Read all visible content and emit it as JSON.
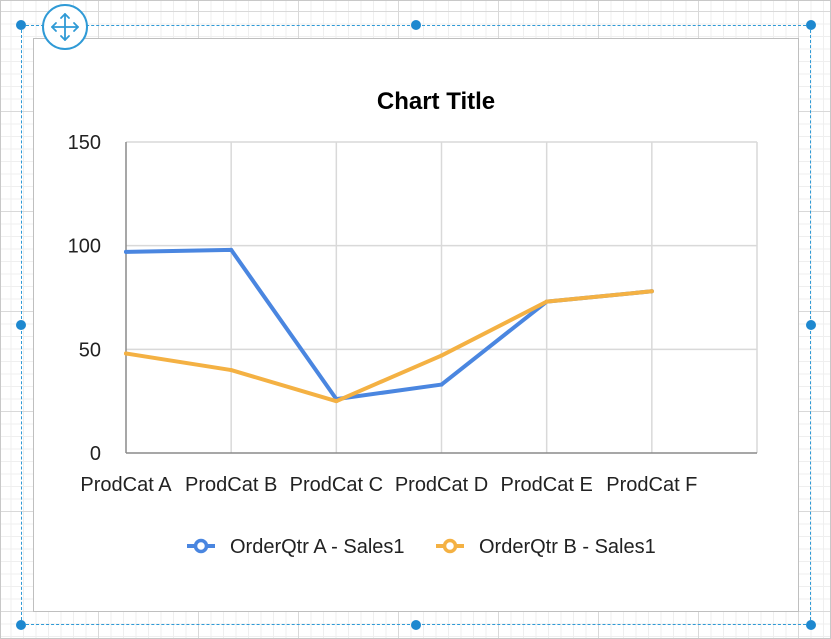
{
  "chart_data": {
    "type": "line",
    "title": "Chart Title",
    "xlabel": "",
    "ylabel": "",
    "categories": [
      "ProdCat A",
      "ProdCat B",
      "ProdCat C",
      "ProdCat D",
      "ProdCat E",
      "ProdCat F"
    ],
    "ylim": [
      0,
      150
    ],
    "yticks": [
      0,
      50,
      100,
      150
    ],
    "grid": true,
    "legend_position": "bottom",
    "series": [
      {
        "name": "OrderQtr A - Sales1",
        "color": "#4a86e0",
        "values": [
          97,
          98,
          26,
          33,
          73,
          78
        ]
      },
      {
        "name": "OrderQtr B - Sales1",
        "color": "#f4b143",
        "values": [
          48,
          40,
          25,
          47,
          73,
          78
        ]
      }
    ]
  },
  "designer": {
    "move_handle_icon": "move-arrows-icon",
    "selection_color": "#2f9ad6"
  }
}
